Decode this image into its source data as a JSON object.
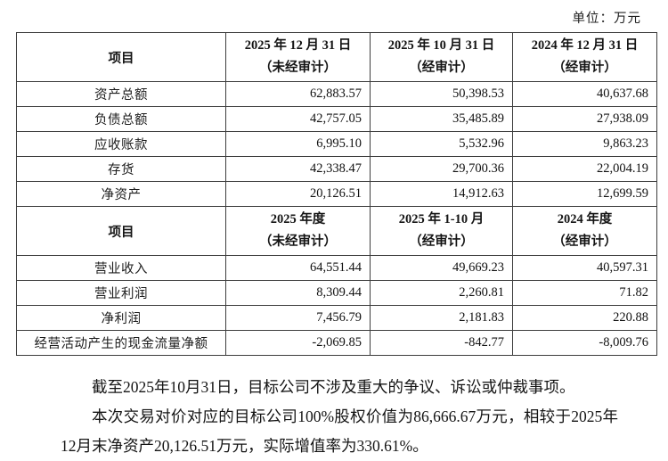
{
  "unit_label": "单位：万元",
  "table": {
    "header1": {
      "item": "项目",
      "cols": [
        {
          "line1": "2025 年 12 月 31 日",
          "line2": "（未经审计）"
        },
        {
          "line1": "2025 年 10 月 31 日",
          "line2": "（经审计）"
        },
        {
          "line1": "2024 年 12 月 31 日",
          "line2": "（经审计）"
        }
      ]
    },
    "rows1": [
      {
        "label": "资产总额",
        "values": [
          "62,883.57",
          "50,398.53",
          "40,637.68"
        ]
      },
      {
        "label": "负债总额",
        "values": [
          "42,757.05",
          "35,485.89",
          "27,938.09"
        ]
      },
      {
        "label": "应收账款",
        "values": [
          "6,995.10",
          "5,532.96",
          "9,863.23"
        ]
      },
      {
        "label": "存货",
        "values": [
          "42,338.47",
          "29,700.36",
          "22,004.19"
        ]
      },
      {
        "label": "净资产",
        "values": [
          "20,126.51",
          "14,912.63",
          "12,699.59"
        ]
      }
    ],
    "header2": {
      "item": "项目",
      "cols": [
        {
          "line1": "2025 年度",
          "line2": "（未经审计）"
        },
        {
          "line1": "2025 年 1-10 月",
          "line2": "（经审计）"
        },
        {
          "line1": "2024 年度",
          "line2": "（经审计）"
        }
      ]
    },
    "rows2": [
      {
        "label": "营业收入",
        "values": [
          "64,551.44",
          "49,669.23",
          "40,597.31"
        ]
      },
      {
        "label": "营业利润",
        "values": [
          "8,309.44",
          "2,260.81",
          "71.82"
        ]
      },
      {
        "label": "净利润",
        "values": [
          "7,456.79",
          "2,181.83",
          "220.88"
        ]
      },
      {
        "label": "经营活动产生的现金流量净额",
        "values": [
          "-2,069.85",
          "-842.77",
          "-8,009.76"
        ]
      }
    ]
  },
  "paragraphs": [
    "截至2025年10月31日，目标公司不涉及重大的争议、诉讼或仲裁事项。",
    "本次交易对价对应的目标公司100%股权价值为86,666.67万元，相较于2025年12月末净资产20,126.51万元，实际增值率为330.61%。"
  ]
}
